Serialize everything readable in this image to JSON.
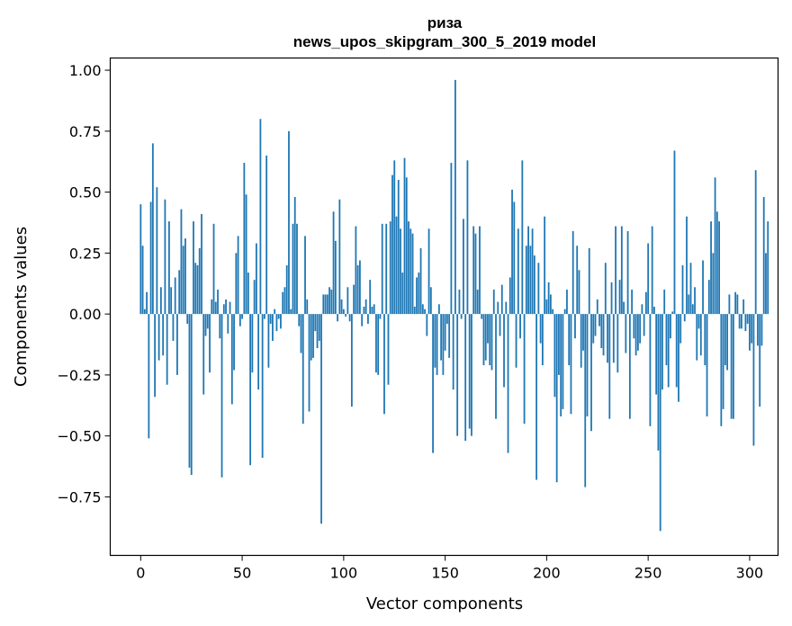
{
  "chart_data": {
    "type": "bar",
    "title": "риза",
    "subtitle": "news_upos_skipgram_300_5_2019 model",
    "xlabel": "Vector components",
    "ylabel": "Components values",
    "xlim": [
      -15,
      314
    ],
    "ylim": [
      -0.99,
      1.05
    ],
    "xticks": [
      0,
      50,
      100,
      150,
      200,
      250,
      300
    ],
    "xtick_labels": [
      "0",
      "50",
      "100",
      "150",
      "200",
      "250",
      "300"
    ],
    "yticks": [
      -0.75,
      -0.5,
      -0.25,
      0.0,
      0.25,
      0.5,
      0.75,
      1.0
    ],
    "ytick_labels": [
      "−0.75",
      "−0.50",
      "−0.25",
      "0.00",
      "0.25",
      "0.50",
      "0.75",
      "1.00"
    ],
    "bar_color": "#1f77b4",
    "values": [
      0.45,
      0.28,
      0.02,
      0.09,
      -0.51,
      0.46,
      0.7,
      -0.34,
      0.52,
      -0.19,
      0.11,
      -0.17,
      0.47,
      -0.29,
      0.38,
      0.11,
      -0.11,
      0.15,
      -0.25,
      0.18,
      0.43,
      0.28,
      0.31,
      -0.04,
      -0.63,
      -0.66,
      0.38,
      0.21,
      0.2,
      0.27,
      0.41,
      -0.33,
      -0.09,
      -0.06,
      -0.24,
      0.06,
      0.37,
      0.05,
      0.1,
      -0.1,
      -0.67,
      0.04,
      0.06,
      -0.08,
      0.05,
      -0.37,
      -0.23,
      0.25,
      0.32,
      -0.05,
      -0.02,
      0.62,
      0.49,
      0.17,
      -0.62,
      -0.24,
      0.14,
      0.29,
      -0.31,
      0.8,
      -0.59,
      -0.02,
      0.65,
      -0.22,
      -0.04,
      -0.11,
      0.02,
      -0.07,
      -0.02,
      -0.06,
      0.09,
      0.11,
      0.2,
      0.75,
      0.02,
      0.37,
      0.48,
      0.37,
      -0.05,
      -0.16,
      -0.45,
      0.32,
      0.06,
      -0.4,
      -0.19,
      -0.18,
      -0.07,
      -0.14,
      -0.11,
      -0.86,
      0.08,
      0.08,
      0.08,
      0.11,
      0.1,
      0.42,
      0.3,
      -0.03,
      0.47,
      0.06,
      0.02,
      -0.01,
      0.11,
      -0.03,
      -0.38,
      0.12,
      0.36,
      0.2,
      0.22,
      -0.05,
      0.03,
      0.06,
      -0.04,
      0.14,
      0.03,
      0.04,
      -0.24,
      -0.25,
      -0.02,
      0.37,
      -0.41,
      0.37,
      -0.29,
      0.38,
      0.57,
      0.63,
      0.4,
      0.55,
      0.35,
      0.17,
      0.64,
      0.56,
      0.38,
      0.35,
      0.33,
      0.03,
      0.15,
      0.17,
      0.27,
      0.04,
      0.02,
      -0.09,
      0.35,
      0.11,
      -0.57,
      -0.22,
      -0.25,
      0.04,
      -0.19,
      -0.25,
      -0.15,
      -0.04,
      -0.18,
      0.62,
      -0.31,
      0.96,
      -0.5,
      0.1,
      -0.02,
      0.39,
      -0.52,
      0.63,
      -0.47,
      -0.5,
      0.36,
      0.33,
      0.1,
      0.36,
      -0.02,
      -0.21,
      -0.19,
      -0.12,
      -0.21,
      -0.23,
      0.1,
      -0.43,
      0.05,
      -0.09,
      0.12,
      -0.3,
      0.05,
      -0.57,
      0.15,
      0.51,
      0.46,
      -0.22,
      0.35,
      -0.1,
      0.63,
      -0.45,
      0.28,
      0.36,
      0.28,
      0.35,
      0.24,
      -0.68,
      0.21,
      -0.12,
      -0.21,
      0.4,
      0.06,
      0.13,
      0.08,
      0.02,
      -0.34,
      -0.69,
      -0.25,
      -0.42,
      -0.39,
      0.02,
      0.1,
      -0.21,
      -0.41,
      0.34,
      -0.1,
      0.28,
      0.18,
      -0.22,
      -0.15,
      -0.71,
      -0.42,
      0.27,
      -0.48,
      -0.12,
      -0.09,
      0.06,
      -0.05,
      -0.14,
      -0.17,
      0.21,
      -0.2,
      -0.43,
      0.13,
      -0.2,
      0.36,
      -0.24,
      0.14,
      0.36,
      0.05,
      -0.16,
      0.34,
      -0.43,
      0.1,
      -0.1,
      -0.17,
      -0.15,
      -0.12,
      0.04,
      -0.09,
      0.09,
      0.29,
      -0.46,
      0.36,
      0.03,
      -0.33,
      -0.56,
      -0.89,
      -0.31,
      0.1,
      -0.21,
      -0.3,
      -0.1,
      0.01,
      0.67,
      -0.3,
      -0.36,
      -0.12,
      0.2,
      -0.03,
      0.4,
      0.08,
      0.21,
      0.04,
      0.11,
      -0.19,
      -0.06,
      -0.17,
      0.22,
      -0.21,
      -0.42,
      0.14,
      0.38,
      0.25,
      0.56,
      0.42,
      0.38,
      -0.46,
      -0.39,
      -0.21,
      -0.23,
      0.08,
      -0.43,
      -0.43,
      0.09,
      0.08,
      -0.06,
      -0.06,
      0.06,
      -0.07,
      -0.04,
      -0.15,
      -0.12,
      -0.54,
      0.59,
      -0.13,
      -0.38,
      -0.13,
      0.48,
      0.25,
      0.38
    ]
  }
}
